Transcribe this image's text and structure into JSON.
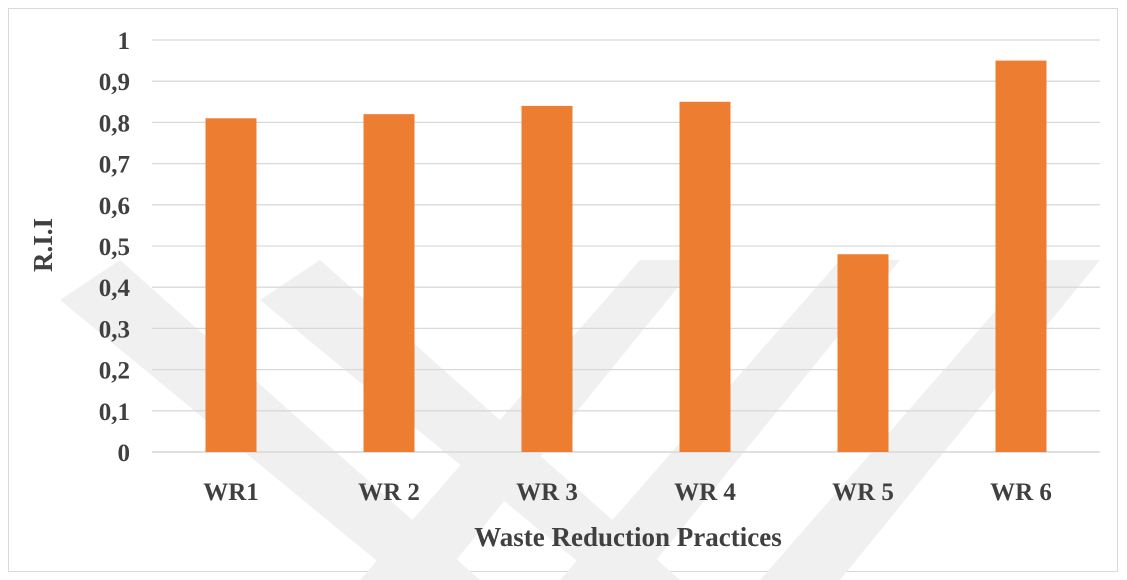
{
  "chart_data": {
    "type": "bar",
    "categories": [
      "WR1",
      "WR 2",
      "WR 3",
      "WR 4",
      "WR 5",
      "WR 6"
    ],
    "values": [
      0.81,
      0.82,
      0.84,
      0.85,
      0.48,
      0.95
    ],
    "title": "",
    "xlabel": "Waste Reduction Practices",
    "ylabel": "R.I.I",
    "ylim": [
      0,
      1
    ],
    "yticks": [
      "0",
      "0,1",
      "0,2",
      "0,3",
      "0,4",
      "0,5",
      "0,6",
      "0,7",
      "0,8",
      "0,9",
      "1"
    ],
    "grid": true,
    "legend": "none",
    "colors": {
      "bar": "#ED7D31",
      "grid": "#D9D9D9",
      "text": "#404040",
      "watermark": "#EEEEEE"
    }
  }
}
